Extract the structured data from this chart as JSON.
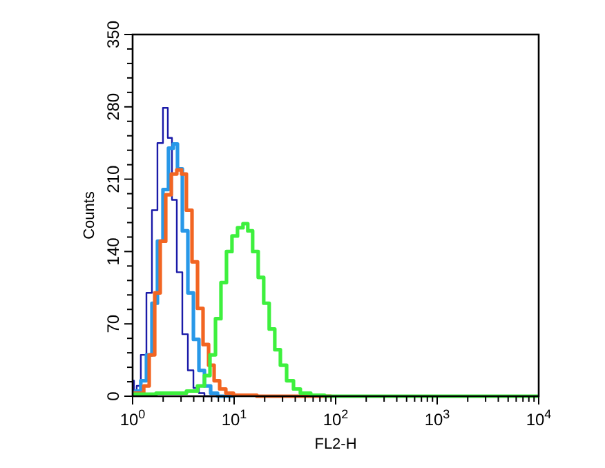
{
  "chart_data": {
    "type": "step",
    "xlabel": "FL2-H",
    "ylabel": "Counts",
    "log": "x",
    "grid": false,
    "line_style": "solid",
    "xlim": [
      1,
      10000
    ],
    "ylim": [
      0,
      350
    ],
    "xticks": [
      {
        "value": 1,
        "label": "10$^{0}$"
      },
      {
        "value": 2,
        "label": null
      },
      {
        "value": 3,
        "label": null
      },
      {
        "value": 4,
        "label": null
      },
      {
        "value": 5,
        "label": null
      },
      {
        "value": 6,
        "label": null
      },
      {
        "value": 7,
        "label": null
      },
      {
        "value": 8,
        "label": null
      },
      {
        "value": 9,
        "label": null
      },
      {
        "value": 10,
        "label": "10$^{1}$"
      },
      {
        "value": 20,
        "label": null
      },
      {
        "value": 30,
        "label": null
      },
      {
        "value": 40,
        "label": null
      },
      {
        "value": 50,
        "label": null
      },
      {
        "value": 60,
        "label": null
      },
      {
        "value": 70,
        "label": null
      },
      {
        "value": 80,
        "label": null
      },
      {
        "value": 90,
        "label": null
      },
      {
        "value": 100,
        "label": "10$^{2}$"
      },
      {
        "value": 200,
        "label": null
      },
      {
        "value": 300,
        "label": null
      },
      {
        "value": 400,
        "label": null
      },
      {
        "value": 500,
        "label": null
      },
      {
        "value": 600,
        "label": null
      },
      {
        "value": 700,
        "label": null
      },
      {
        "value": 800,
        "label": null
      },
      {
        "value": 900,
        "label": null
      },
      {
        "value": 1000,
        "label": "10$^{3}$"
      },
      {
        "value": 2000,
        "label": null
      },
      {
        "value": 3000,
        "label": null
      },
      {
        "value": 4000,
        "label": null
      },
      {
        "value": 5000,
        "label": null
      },
      {
        "value": 6000,
        "label": null
      },
      {
        "value": 7000,
        "label": null
      },
      {
        "value": 8000,
        "label": null
      },
      {
        "value": 9000,
        "label": null
      },
      {
        "value": 10000,
        "label": "10$^{4}$"
      }
    ],
    "yticks": [
      0,
      {
        "value": 14,
        "label": null
      },
      {
        "value": 28,
        "label": null
      },
      {
        "value": 42,
        "label": null
      },
      {
        "value": 56,
        "label": null
      },
      70,
      {
        "value": 84,
        "label": null
      },
      {
        "value": 98,
        "label": null
      },
      {
        "value": 112,
        "label": null
      },
      {
        "value": 126,
        "label": null
      },
      140,
      {
        "value": 154,
        "label": null
      },
      {
        "value": 168,
        "label": null
      },
      {
        "value": 182,
        "label": null
      },
      {
        "value": 196,
        "label": null
      },
      210,
      {
        "value": 224,
        "label": null
      },
      {
        "value": 238,
        "label": null
      },
      {
        "value": 252,
        "label": null
      },
      {
        "value": 266,
        "label": null
      },
      280,
      {
        "value": 294,
        "label": null
      },
      {
        "value": 308,
        "label": null
      },
      {
        "value": 322,
        "label": null
      },
      {
        "value": 336,
        "label": null
      },
      350
    ],
    "series": [
      {
        "color": "#1a1aa8",
        "x": [
          1,
          1.065,
          1.13,
          1.285,
          1.457,
          1.65,
          1.87,
          2.12,
          2.33,
          2.56,
          2.9,
          3.29,
          3.73,
          4.23,
          4.79,
          5.43,
          10
        ],
        "values": [
          15,
          5,
          10,
          40,
          100,
          180,
          245,
          279,
          250,
          190,
          120,
          60,
          25,
          8,
          3,
          0,
          0
        ]
      },
      {
        "color": "#2898e8",
        "x": [
          1,
          1.13,
          1.285,
          1.457,
          1.65,
          1.87,
          2.12,
          2.4,
          2.64,
          2.9,
          3.29,
          3.73,
          4.23,
          4.79,
          5.43,
          6.35,
          7.43,
          10
        ],
        "values": [
          3,
          5,
          15,
          40,
          90,
          150,
          200,
          240,
          244,
          220,
          160,
          100,
          55,
          25,
          10,
          3,
          0,
          0
        ]
      },
      {
        "color": "#f26522",
        "x": [
          1,
          1.21,
          1.37,
          1.55,
          1.76,
          1.99,
          2.26,
          2.56,
          2.9,
          3.18,
          3.61,
          4.1,
          4.64,
          5.26,
          5.97,
          6.76,
          7.67,
          8.95,
          10.8,
          26,
          91
        ],
        "values": [
          3,
          3,
          10,
          40,
          100,
          150,
          195,
          215,
          219,
          215,
          180,
          130,
          85,
          50,
          30,
          15,
          7,
          3,
          1,
          0,
          0
        ]
      },
      {
        "color": "#3ef03e",
        "x": [
          1,
          2.9,
          3.97,
          4.79,
          5.43,
          6.16,
          6.97,
          7.9,
          8.95,
          10.14,
          11.5,
          13,
          14.3,
          16.2,
          18.4,
          20.8,
          23.6,
          26.8,
          30.4,
          35.6,
          41.5,
          48.6,
          66.5,
          91,
          10000
        ],
        "values": [
          2,
          3,
          5,
          10,
          20,
          40,
          75,
          110,
          140,
          155,
          163,
          167,
          160,
          140,
          115,
          90,
          65,
          45,
          30,
          15,
          7,
          3,
          1,
          0,
          0
        ]
      }
    ]
  }
}
